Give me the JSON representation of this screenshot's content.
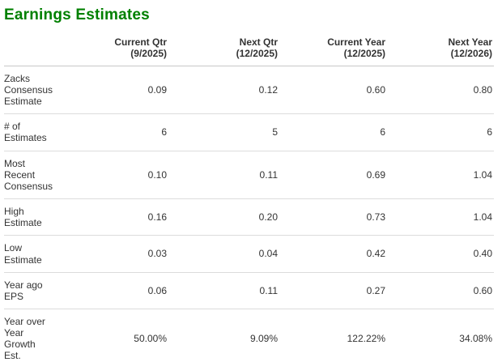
{
  "page": {
    "title": "Earnings Estimates"
  },
  "colors": {
    "title_green": "#008000",
    "body_text": "#333333",
    "divider": "#dcdcdc"
  },
  "table": {
    "columns": [
      "Current Qtr\n(9/2025)",
      "Next Qtr\n(12/2025)",
      "Current Year\n(12/2025)",
      "Next Year\n(12/2026)"
    ],
    "rows": [
      {
        "label": "Zacks\nConsensus\nEstimate",
        "values": [
          "0.09",
          "0.12",
          "0.60",
          "0.80"
        ]
      },
      {
        "label": "# of\nEstimates",
        "values": [
          "6",
          "5",
          "6",
          "6"
        ]
      },
      {
        "label": "Most\nRecent\nConsensus",
        "values": [
          "0.10",
          "0.11",
          "0.69",
          "1.04"
        ]
      },
      {
        "label": "High\nEstimate",
        "values": [
          "0.16",
          "0.20",
          "0.73",
          "1.04"
        ]
      },
      {
        "label": "Low\nEstimate",
        "values": [
          "0.03",
          "0.04",
          "0.42",
          "0.40"
        ]
      },
      {
        "label": "Year ago\nEPS",
        "values": [
          "0.06",
          "0.11",
          "0.27",
          "0.60"
        ]
      },
      {
        "label": "Year over\nYear\nGrowth\nEst.",
        "values": [
          "50.00%",
          "9.09%",
          "122.22%",
          "34.08%"
        ]
      }
    ]
  }
}
